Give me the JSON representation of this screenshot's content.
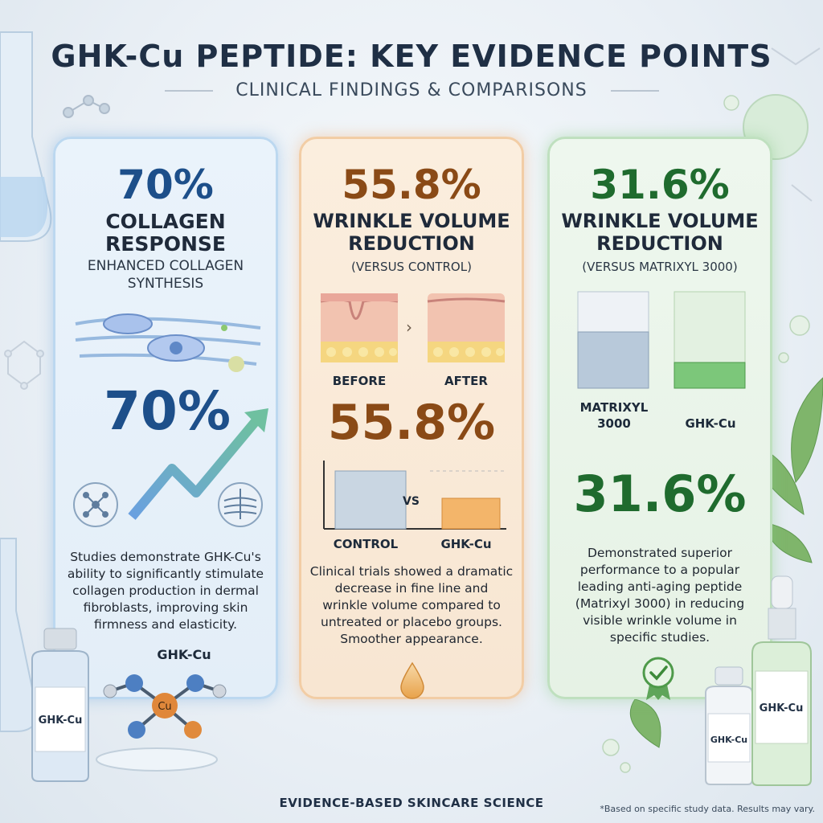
{
  "header": {
    "title": "GHK-Cu PEPTIDE: KEY EVIDENCE POINTS",
    "subtitle": "CLINICAL FINDINGS & COMPARISONS"
  },
  "cards": [
    {
      "stat": "70%",
      "heading": "COLLAGEN RESPONSE",
      "heading_line1": "COLLAGEN",
      "heading_line2": "RESPONSE",
      "sub_line1": "ENHANCED COLLAGEN",
      "sub_line2": "SYNTHESIS",
      "big_stat": "70%",
      "body": [
        "Studies demonstrate GHK-Cu's",
        "ability to significantly stimulate",
        "collagen production in dermal",
        "fibroblasts, improving skin",
        "firmness and elasticity."
      ],
      "molecule_label": "GHK-Cu",
      "atom_label": "Cu",
      "color": "#1d4f8a"
    },
    {
      "stat": "55.8%",
      "heading_line1": "WRINKLE VOLUME",
      "heading_line2": "REDUCTION",
      "sub": "(VERSUS CONTROL)",
      "before_label": "BEFORE",
      "after_label": "AFTER",
      "big_stat": "55.8%",
      "vs_label": "VS",
      "bar1_label": "CONTROL",
      "bar2_label": "GHK-Cu",
      "body": [
        "Clinical trials showed a dramatic",
        "decrease in fine line and",
        "wrinkle volume compared to",
        "untreated or placebo groups.",
        "Smoother appearance."
      ],
      "color": "#8a4a16"
    },
    {
      "stat": "31.6%",
      "heading_line1": "WRINKLE VOLUME",
      "heading_line2": "REDUCTION",
      "sub": "(VERSUS MATRIXYL 3000)",
      "bar1_label_line1": "MATRIXYL",
      "bar1_label_line2": "3000",
      "bar2_label": "GHK-Cu",
      "big_stat": "31.6%",
      "body": [
        "Demonstrated superior",
        "performance to a popular",
        "leading anti-aging peptide",
        "(Matrixyl 3000) in reducing",
        "visible wrinkle volume in",
        "specific studies."
      ],
      "color": "#1f6b2e"
    }
  ],
  "bottles": {
    "left_label": "GHK-Cu",
    "right_small_label": "GHK-Cu",
    "right_large_label": "GHK-Cu"
  },
  "footer": {
    "text": "EVIDENCE-BASED SKINCARE SCIENCE",
    "note": "*Based on specific study data. Results may vary."
  }
}
